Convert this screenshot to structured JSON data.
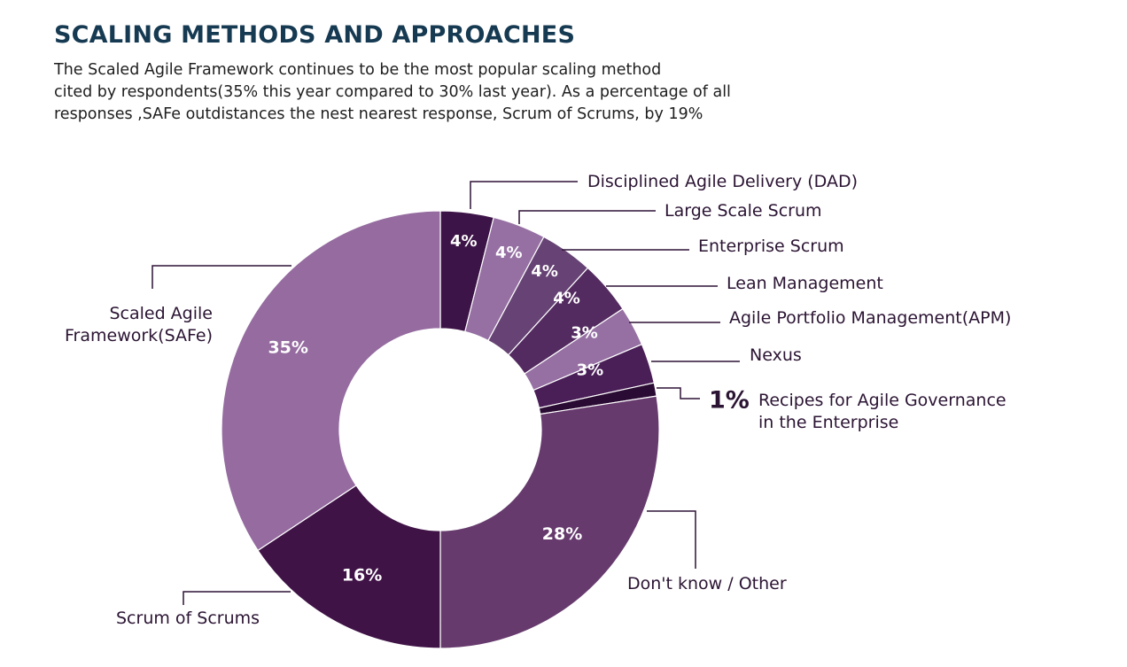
{
  "header": {
    "title": "SCALING METHODS AND APPROACHES",
    "description_lines": [
      "The Scaled Agile Framework continues to be the most popular scaling method",
      "cited by respondents(35% this year compared to 30% last year). As a percentage of all",
      "responses ,SAFe outdistances the nest nearest response, Scrum of Scrums, by 19%"
    ]
  },
  "chart_data": {
    "type": "donut",
    "unit": "%",
    "start": "12 o'clock",
    "direction": "clockwise",
    "slices": [
      {
        "label": "Disciplined Agile Delivery (DAD)",
        "value": 4,
        "value_label": "4%",
        "color": "#3d1447"
      },
      {
        "label": "Large Scale Scrum",
        "value": 4,
        "value_label": "4%",
        "color": "#9670a3"
      },
      {
        "label": "Enterprise Scrum",
        "value": 4,
        "value_label": "4%",
        "color": "#664374"
      },
      {
        "label": "Lean Management",
        "value": 4,
        "value_label": "4%",
        "color": "#542b60"
      },
      {
        "label": "Agile Portfolio Management(APM)",
        "value": 3,
        "value_label": "3%",
        "color": "#9670a3"
      },
      {
        "label": "Nexus",
        "value": 3,
        "value_label": "3%",
        "color": "#4a1e57"
      },
      {
        "label": "Recipes for Agile Governance in the Enterprise",
        "value": 1,
        "value_label": "1%",
        "color": "#2a0b33"
      },
      {
        "label": "Don't know / Other",
        "value": 28,
        "value_label": "28%",
        "color": "#663a6d"
      },
      {
        "label": "Scrum of Scrums",
        "value": 16,
        "value_label": "16%",
        "color": "#401347"
      },
      {
        "label": "Scaled Agile Framework(SAFe)",
        "value": 35,
        "value_label": "35%",
        "color": "#956ba0"
      }
    ],
    "outside_value_label": {
      "slice": "Recipes for Agile Governance in the Enterprise",
      "text": "1%"
    },
    "colors": {
      "title": "#163a52",
      "leader_lines": "#2f1237",
      "labels": "#2b1433",
      "value_labels": "#ffffff"
    }
  }
}
